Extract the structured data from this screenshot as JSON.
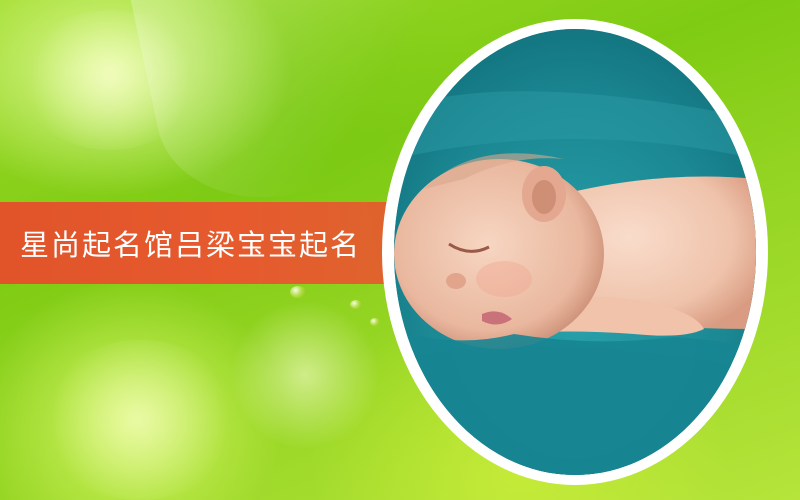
{
  "banner": {
    "title": "星尚起名馆吕梁宝宝起名",
    "color": "#e1542a"
  },
  "background": {
    "primary_color": "#8fd11e",
    "highlight_color": "#e6ff9a"
  },
  "photo": {
    "subject": "sleeping-baby-photo",
    "blanket_color": "#1f8f9b",
    "frame_color": "#ffffff"
  }
}
